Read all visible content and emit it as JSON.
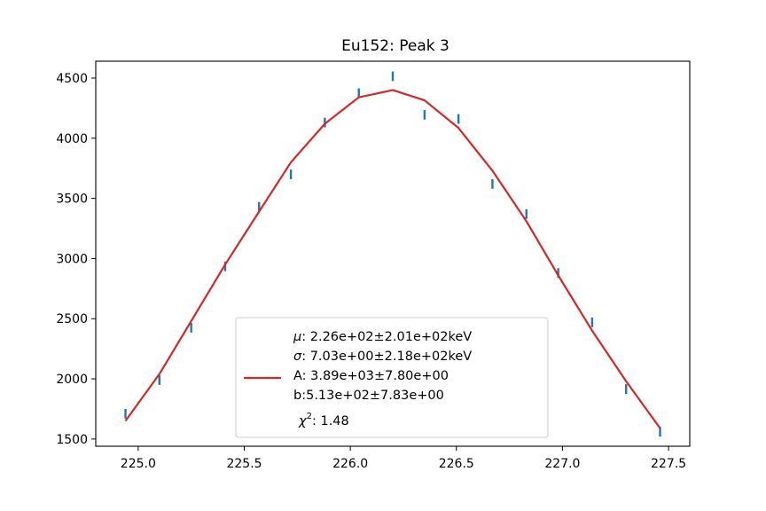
{
  "chart_data": {
    "type": "line",
    "title": "Eu152: Peak 3",
    "xlabel": "",
    "ylabel": "",
    "xlim": [
      224.8,
      227.6
    ],
    "ylim": [
      1440,
      4640
    ],
    "xticks": [
      225.0,
      225.5,
      226.0,
      226.5,
      227.0,
      227.5
    ],
    "xtick_labels": [
      "225.0",
      "225.5",
      "226.0",
      "226.5",
      "227.0",
      "227.5"
    ],
    "yticks": [
      1500,
      2000,
      2500,
      3000,
      3500,
      4000,
      4500
    ],
    "ytick_labels": [
      "1500",
      "2000",
      "2500",
      "3000",
      "3500",
      "4000",
      "4500"
    ],
    "grid": false,
    "legend_position": "lower-center",
    "colors": {
      "data": "#1f77b4",
      "fit": "#d62728"
    },
    "series": [
      {
        "kind": "errorbar",
        "x": [
          224.94,
          225.1,
          225.25,
          225.41,
          225.57,
          225.72,
          225.88,
          226.04,
          226.2,
          226.35,
          226.51,
          226.67,
          226.83,
          226.98,
          227.14,
          227.3,
          227.46
        ],
        "y": [
          1710,
          1990,
          2425,
          2935,
          3430,
          3700,
          4130,
          4375,
          4515,
          4195,
          4160,
          3620,
          3370,
          2880,
          2470,
          1915,
          1560
        ],
        "yerr": [
          40,
          40,
          40,
          40,
          40,
          40,
          40,
          40,
          40,
          40,
          40,
          40,
          40,
          40,
          40,
          40,
          40
        ]
      },
      {
        "kind": "fit",
        "x": [
          224.94,
          225.1,
          225.25,
          225.41,
          225.57,
          225.72,
          225.88,
          226.04,
          226.2,
          226.35,
          226.51,
          226.67,
          226.83,
          226.98,
          227.14,
          227.3,
          227.46
        ],
        "y": [
          1650,
          2040,
          2480,
          2950,
          3390,
          3800,
          4120,
          4340,
          4400,
          4315,
          4085,
          3730,
          3310,
          2860,
          2400,
          1980,
          1590
        ]
      }
    ],
    "legend_entries": [
      "$\\mu$: 2.26e+02±2.01e+02keV",
      "$\\sigma$: 7.03e+00±2.18e+02keV",
      "A: 3.89e+03±7.80e+00",
      "b:5.13e+02±7.83e+00",
      "$\\chi^2$: 1.48"
    ],
    "legend_display": {
      "mu_symbol": "μ",
      "mu_text": ": 2.26e+02±2.01e+02keV",
      "sigma_symbol": "σ",
      "sigma_text": ": 7.03e+00±2.18e+02keV",
      "a_text": "A: 3.89e+03±7.80e+00",
      "b_text": "b:5.13e+02±7.83e+00",
      "chi_symbol": "χ",
      "chi_sup": "2",
      "chi_text": ": 1.48"
    }
  }
}
